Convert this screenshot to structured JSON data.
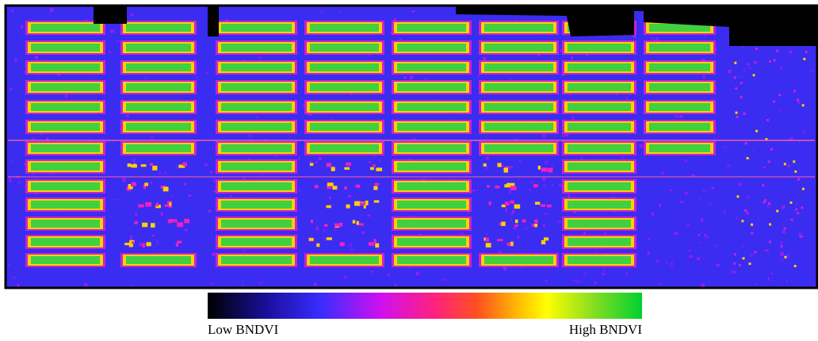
{
  "legend": {
    "low_label": "Low BNDVI",
    "high_label": "High BNDVI"
  }
}
